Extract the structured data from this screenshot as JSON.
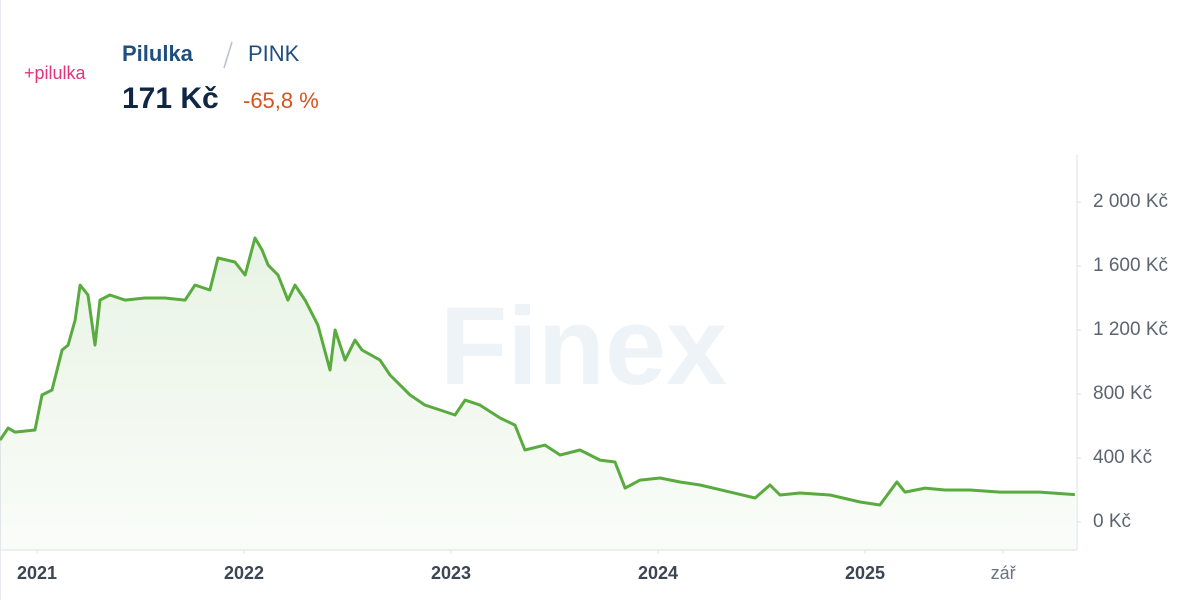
{
  "header": {
    "logo": "+pilulka",
    "name": "Pilulka",
    "ticker": "PINK",
    "price": "171 Kč",
    "change": "-65,8 %"
  },
  "watermark": "Finex",
  "chart_data": {
    "type": "line",
    "x": [
      2020.821,
      2020.86,
      2020.893,
      2020.99,
      2021.024,
      2021.072,
      2021.121,
      2021.15,
      2021.184,
      2021.208,
      2021.246,
      2021.28,
      2021.304,
      2021.352,
      2021.425,
      2021.521,
      2021.618,
      2021.715,
      2021.763,
      2021.835,
      2021.874,
      2021.956,
      2022.005,
      2022.053,
      2022.087,
      2022.116,
      2022.164,
      2022.212,
      2022.246,
      2022.295,
      2022.357,
      2022.415,
      2022.44,
      2022.488,
      2022.536,
      2022.57,
      2022.657,
      2022.705,
      2022.754,
      2022.802,
      2022.874,
      2022.947,
      2023.019,
      2023.068,
      2023.14,
      2023.237,
      2023.309,
      2023.357,
      2023.454,
      2023.527,
      2023.623,
      2023.72,
      2023.792,
      2023.841,
      2023.913,
      2024.01,
      2024.106,
      2024.203,
      2024.348,
      2024.469,
      2024.541,
      2024.589,
      2024.686,
      2024.831,
      2024.976,
      2025.072,
      2025.154,
      2025.193,
      2025.29,
      2025.386,
      2025.507,
      2025.652,
      2025.845,
      2026.014
    ],
    "values": [
      512,
      587,
      562,
      575,
      794,
      825,
      1075,
      1106,
      1262,
      1481,
      1419,
      1106,
      1387,
      1419,
      1387,
      1400,
      1400,
      1387,
      1481,
      1450,
      1650,
      1625,
      1544,
      1775,
      1700,
      1606,
      1544,
      1387,
      1481,
      1387,
      1231,
      950,
      1200,
      1012,
      1137,
      1075,
      1012,
      919,
      856,
      794,
      731,
      700,
      669,
      762,
      731,
      650,
      606,
      450,
      481,
      419,
      450,
      387,
      375,
      212,
      262,
      275,
      250,
      231,
      187,
      150,
      231,
      169,
      181,
      169,
      125,
      106,
      250,
      187,
      212,
      200,
      200,
      187,
      187,
      171
    ],
    "color": "#5aab3f",
    "xlim": [
      2020.821,
      2026.024
    ],
    "xticks": [
      2021,
      2022,
      2023,
      2024,
      2025,
      {
        "value": 2025.667,
        "label": "zář"
      }
    ],
    "ylim": [
      -175,
      2294
    ],
    "yticks": [
      {
        "value": 0,
        "label": "0 Kč"
      },
      {
        "value": 400,
        "label": "400 Kč"
      },
      {
        "value": 800,
        "label": "800 Kč"
      },
      {
        "value": 1200,
        "label": "1 200 Kč"
      },
      {
        "value": 1600,
        "label": "1 600 Kč"
      },
      {
        "value": 2000,
        "label": "2 000 Kč"
      }
    ]
  }
}
